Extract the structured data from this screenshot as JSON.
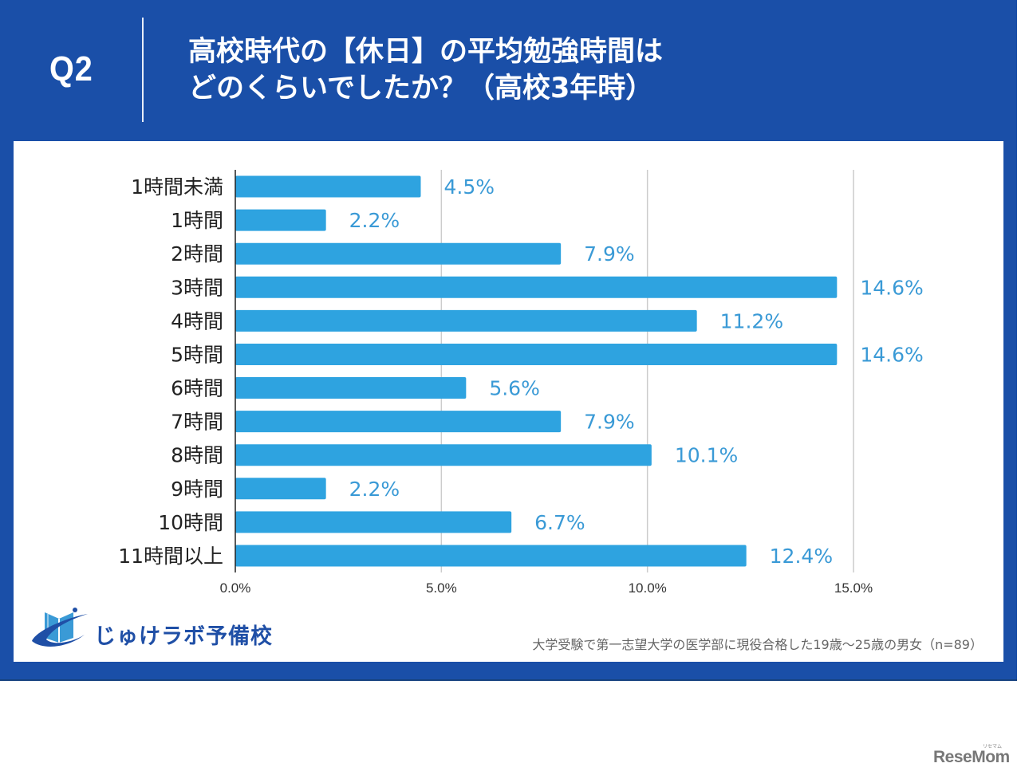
{
  "header": {
    "question_label": "Q2",
    "title_line1": "高校時代の【休日】の平均勉強時間は",
    "title_line2": "どのくらいでしたか？（高校3年時）"
  },
  "colors": {
    "frame": "#1a4fa8",
    "bar": "#2ea3e0",
    "value_label": "#3a9ad6",
    "grid": "#cccccc",
    "axis": "#222222"
  },
  "chart_data": {
    "type": "bar",
    "orientation": "horizontal",
    "title": "高校時代の【休日】の平均勉強時間はどのくらいでしたか？（高校3年時）",
    "categories": [
      "1時間未満",
      "1時間",
      "2時間",
      "3時間",
      "4時間",
      "5時間",
      "6時間",
      "7時間",
      "8時間",
      "9時間",
      "10時間",
      "11時間以上"
    ],
    "values": [
      4.5,
      2.2,
      7.9,
      14.6,
      11.2,
      14.6,
      5.6,
      7.9,
      10.1,
      2.2,
      6.7,
      12.4
    ],
    "value_labels": [
      "4.5%",
      "2.2%",
      "7.9%",
      "14.6%",
      "11.2%",
      "14.6%",
      "5.6%",
      "7.9%",
      "10.1%",
      "2.2%",
      "6.7%",
      "12.4%"
    ],
    "xlabel": "",
    "ylabel": "",
    "xlim": [
      0,
      15
    ],
    "xticks": [
      0,
      5,
      10,
      15
    ],
    "xtick_labels": [
      "0.0%",
      "5.0%",
      "10.0%",
      "15.0%"
    ],
    "grid": true,
    "legend": "none"
  },
  "footer": {
    "logo_text": "じゅけラボ予備校",
    "sample_note": "大学受験で第一志望大学の医学部に現役合格した19歳～25歳の男女（n=89）",
    "watermark": "ReseMom",
    "watermark_sub": "リセマム"
  }
}
